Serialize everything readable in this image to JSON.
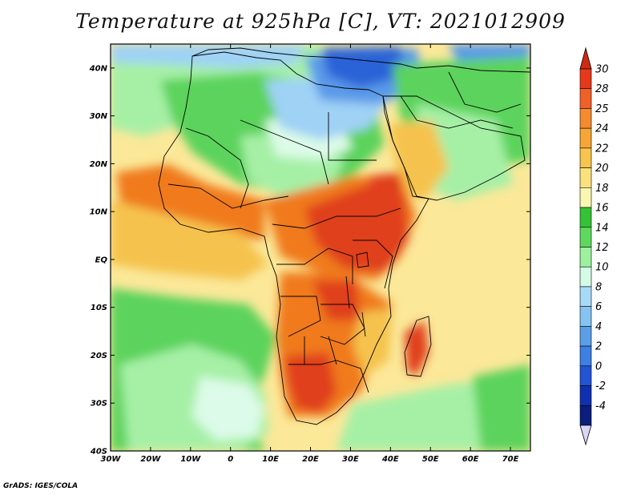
{
  "title": "Temperature at 925hPa [C], VT: 2021012909",
  "credit": "GrADS: IGES/COLA",
  "map": {
    "lon_range": [
      -30,
      75
    ],
    "lat_range": [
      -40,
      45
    ],
    "lon_ticks": [
      {
        "value": -30,
        "label": "30W"
      },
      {
        "value": -20,
        "label": "20W"
      },
      {
        "value": -10,
        "label": "10W"
      },
      {
        "value": 0,
        "label": "0"
      },
      {
        "value": 10,
        "label": "10E"
      },
      {
        "value": 20,
        "label": "20E"
      },
      {
        "value": 30,
        "label": "30E"
      },
      {
        "value": 40,
        "label": "40E"
      },
      {
        "value": 50,
        "label": "50E"
      },
      {
        "value": 60,
        "label": "60E"
      },
      {
        "value": 70,
        "label": "70E"
      }
    ],
    "lat_ticks": [
      {
        "value": 40,
        "label": "40N"
      },
      {
        "value": 30,
        "label": "30N"
      },
      {
        "value": 20,
        "label": "20N"
      },
      {
        "value": 10,
        "label": "10N"
      },
      {
        "value": 0,
        "label": "EQ"
      },
      {
        "value": -10,
        "label": "10S"
      },
      {
        "value": -20,
        "label": "20S"
      },
      {
        "value": -30,
        "label": "30S"
      },
      {
        "value": -40,
        "label": "40S"
      }
    ],
    "colors": {
      "ocean": "#fbe899",
      "land_warm": "#f5c34e",
      "hot": "#f07a1e",
      "very_hot": "#e0401a",
      "green": "#5cd35c",
      "light_green": "#a6f0a6",
      "pale": "#dcfbe8",
      "light_blue": "#9fd2f5",
      "blue": "#5a9ae9",
      "dark_blue": "#2b63d8",
      "border": "#000000"
    }
  },
  "colorbar": {
    "levels": [
      "30",
      "28",
      "25",
      "24",
      "22",
      "20",
      "18",
      "16",
      "14",
      "12",
      "10",
      "8",
      "6",
      "4",
      "2",
      "0",
      "-2",
      "-4"
    ],
    "colors": [
      "#e43a1b",
      "#f0612a",
      "#f58b2f",
      "#f6a637",
      "#f7c44d",
      "#fbe17d",
      "#f9f7b2",
      "#36c236",
      "#5ed85e",
      "#9ef09e",
      "#d4fbe6",
      "#a8daf7",
      "#86c3f2",
      "#5c9fe8",
      "#3d7fe3",
      "#2254d4",
      "#1030b0",
      "#0a1f7c"
    ],
    "top_arrow_color": "#cf2a12",
    "bottom_arrow_color": "#d8d6f7"
  }
}
